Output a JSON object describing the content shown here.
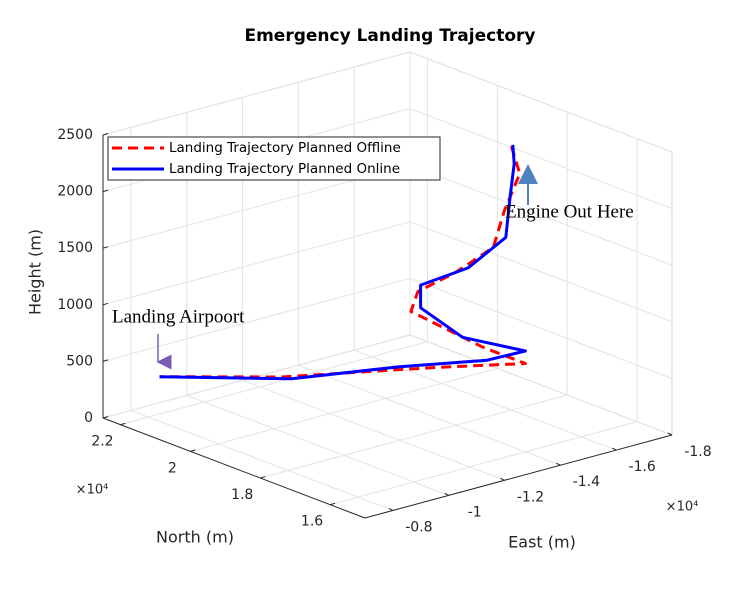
{
  "chart_data": {
    "type": "line3d",
    "title": "Emergency Landing Trajectory",
    "xlabel": "East (m)",
    "ylabel": "North (m)",
    "zlabel": "Height (m)",
    "x_exponent": "×10⁴",
    "y_exponent": "×10⁴",
    "xlim": [
      -0.7,
      -1.8
    ],
    "ylim": [
      1.5,
      2.25
    ],
    "zlim": [
      0,
      2500
    ],
    "xticks": [
      -0.8,
      -1,
      -1.2,
      -1.4,
      -1.6,
      -1.8
    ],
    "yticks": [
      1.6,
      1.8,
      2,
      2.2
    ],
    "zticks": [
      0,
      500,
      1000,
      1500,
      2000,
      2500
    ],
    "grid": true,
    "legend_position": "northwest",
    "annotations": [
      "Landing Airpoort",
      "Engine Out Here"
    ],
    "series": [
      {
        "name": "Landing Trajectory Planned Offline",
        "color": "#ff0000",
        "linestyle": "dashed",
        "x": [
          -1.6,
          -1.58,
          -1.5,
          -1.46,
          -1.4,
          -1.34,
          -1.34,
          -1.45,
          -1.5,
          -1.3,
          -1.0,
          -0.84
        ],
        "y": [
          1.8,
          1.76,
          1.74,
          1.74,
          1.8,
          1.86,
          1.88,
          1.76,
          1.68,
          1.78,
          1.98,
          2.2
        ],
        "z": [
          2330,
          2150,
          1900,
          1600,
          1350,
          1150,
          950,
          700,
          620,
          600,
          480,
          330
        ]
      },
      {
        "name": "Landing Trajectory Planned Online",
        "color": "#0000ff",
        "linestyle": "solid",
        "x": [
          -1.58,
          -1.56,
          -1.52,
          -1.48,
          -1.42,
          -1.35,
          -1.35,
          -1.4,
          -1.55,
          -1.45,
          -1.2,
          -1.0,
          -0.84
        ],
        "y": [
          1.78,
          1.76,
          1.74,
          1.72,
          1.78,
          1.86,
          1.86,
          1.78,
          1.72,
          1.75,
          1.8,
          1.95,
          2.2
        ],
        "z": [
          2380,
          2250,
          2000,
          1700,
          1400,
          1200,
          1000,
          800,
          650,
          600,
          650,
          500,
          330
        ]
      }
    ]
  }
}
